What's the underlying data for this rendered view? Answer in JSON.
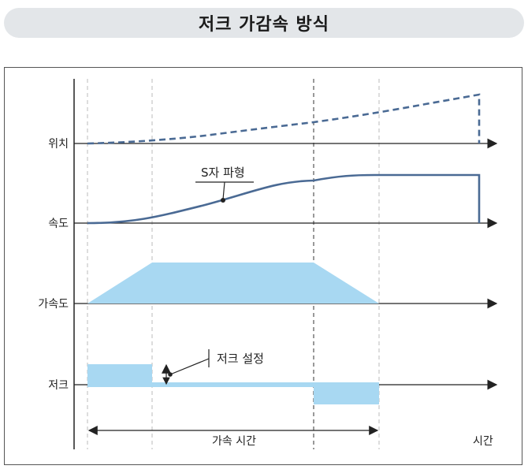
{
  "title": "저크 가감속 방식",
  "rows": {
    "position": "위치",
    "velocity": "속도",
    "acceleration": "가속도",
    "jerk": "저크"
  },
  "annotations": {
    "s_curve": "S자 파형",
    "jerk_setting": "저크 설정",
    "accel_time": "가속 시간",
    "time_axis": "시간"
  },
  "colors": {
    "curve": "#4a6a94",
    "fill": "#a8d8f2",
    "axis": "#222222",
    "guide_dashed_light": "#bbbbbb",
    "guide_dashed_dark": "#333333"
  }
}
